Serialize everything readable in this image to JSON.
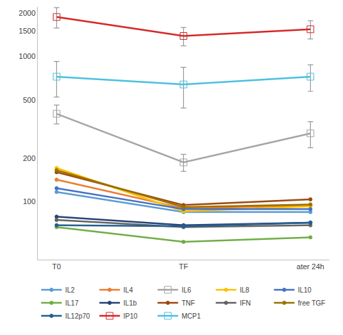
{
  "chart_data": {
    "type": "line",
    "categories": [
      "T0",
      "TF",
      "ater 24h"
    ],
    "log": "y",
    "ylim": [
      40,
      2200
    ],
    "yticks": [
      100,
      200,
      500,
      1000,
      1500,
      2000
    ],
    "grid": false,
    "legend": "bottom",
    "series": [
      {
        "name": "IL2",
        "color": "#5b9bd5",
        "marker": "circle",
        "values": [
          117,
          85,
          85
        ]
      },
      {
        "name": "IL4",
        "color": "#ed7d31",
        "marker": "circle",
        "values": [
          142,
          90,
          94
        ]
      },
      {
        "name": "IL6",
        "color": "#a5a5a5",
        "marker": "square-open",
        "values": [
          404,
          187,
          296
        ],
        "errors": [
          60,
          25,
          60
        ]
      },
      {
        "name": "IL8",
        "color": "#ffc000",
        "marker": "circle",
        "values": [
          171,
          86,
          93
        ]
      },
      {
        "name": "IL10",
        "color": "#4472c4",
        "marker": "circle",
        "values": [
          124,
          89,
          89
        ]
      },
      {
        "name": "IL17",
        "color": "#70ad47",
        "marker": "circle",
        "values": [
          67,
          53,
          57
        ]
      },
      {
        "name": "IL1b",
        "color": "#264478",
        "marker": "circle",
        "values": [
          79,
          69,
          72
        ]
      },
      {
        "name": "TNF",
        "color": "#9e480e",
        "marker": "circle",
        "values": [
          160,
          95,
          104
        ]
      },
      {
        "name": "IFN",
        "color": "#636363",
        "marker": "circle",
        "values": [
          75,
          67,
          69
        ]
      },
      {
        "name": "free TGF",
        "color": "#997300",
        "marker": "circle",
        "values": [
          165,
          92,
          96
        ]
      },
      {
        "name": "IL12p70",
        "color": "#255e91",
        "marker": "circle",
        "values": [
          69,
          68,
          72
        ]
      },
      {
        "name": "IP10",
        "color": "#d62728",
        "marker": "square-open",
        "values": [
          1873,
          1386,
          1542
        ],
        "errors": [
          300,
          200,
          220
        ]
      },
      {
        "name": "MCP1",
        "color": "#4bc0e0",
        "marker": "square-open",
        "values": [
          727,
          643,
          727
        ],
        "errors": [
          200,
          200,
          150
        ]
      }
    ]
  }
}
